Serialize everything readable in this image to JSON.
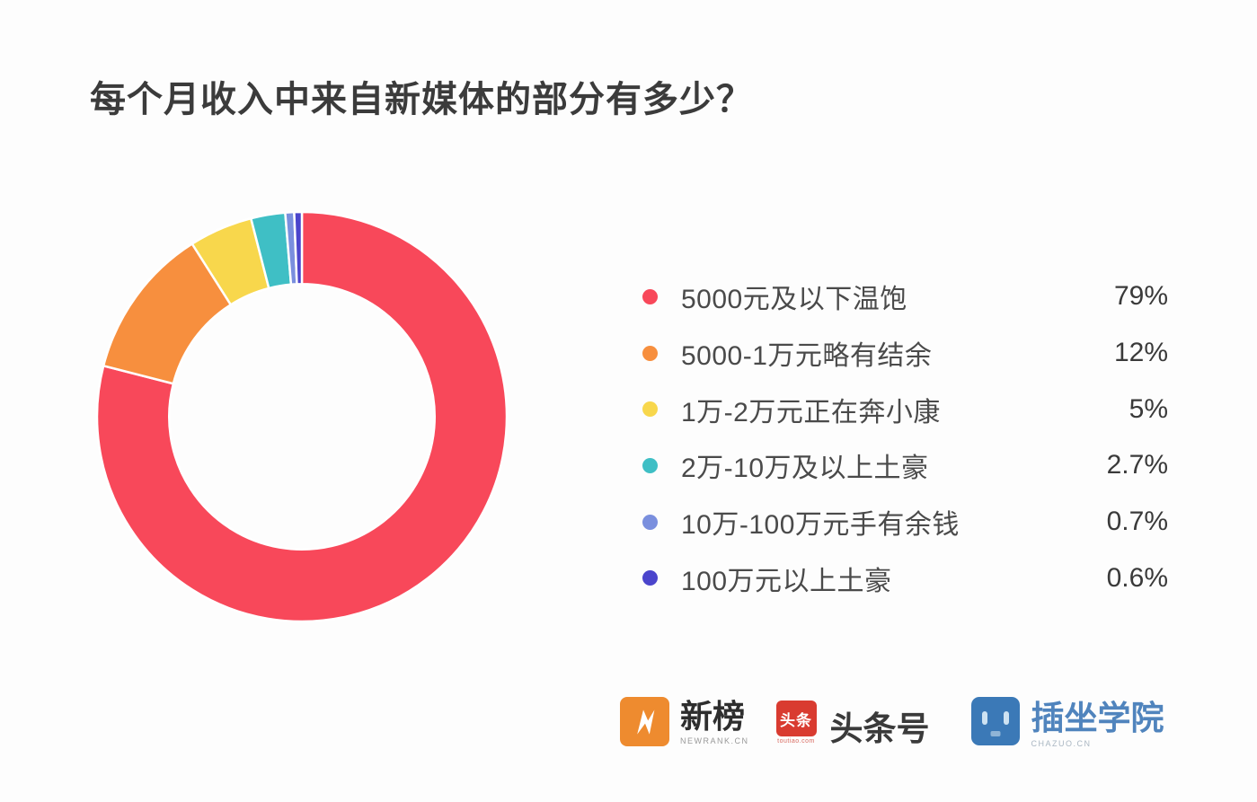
{
  "title": "每个月收入中来自新媒体的部分有多少？",
  "chart_data": {
    "type": "pie",
    "subtype": "donut",
    "title": "每个月收入中来自新媒体的部分有多少？",
    "direction": "clockwise",
    "start_angle_deg": 0,
    "inner_radius_ratio": 0.648,
    "legend_position": "right",
    "series": [
      {
        "label": "5000元及以下温饱",
        "value": 79,
        "display": "79%",
        "color": "#f8485a"
      },
      {
        "label": "5000-1万元略有结余",
        "value": 12,
        "display": "12%",
        "color": "#f78f3e"
      },
      {
        "label": "1万-2万元正在奔小康",
        "value": 5,
        "display": "5%",
        "color": "#f8d74c"
      },
      {
        "label": "2万-10万及以上土豪",
        "value": 2.7,
        "display": "2.7%",
        "color": "#3fbfc5"
      },
      {
        "label": "10万-100万元手有余钱",
        "value": 0.7,
        "display": "0.7%",
        "color": "#7a8fde"
      },
      {
        "label": "100万元以上土豪",
        "value": 0.6,
        "display": "0.6%",
        "color": "#4b45cc"
      }
    ]
  },
  "footer": {
    "logos": [
      {
        "name": "newrank",
        "label": "新榜",
        "sub_label": "NEWRANK.CN",
        "icon": "newrank-n-icon",
        "icon_color": "#ee8b2f"
      },
      {
        "name": "toutiao",
        "label": "头条号",
        "sub_label": "toutiao.com",
        "icon_text": "头条",
        "icon_color": "#d93b30"
      },
      {
        "name": "chazuo",
        "label": "插坐学院",
        "sub_label": "CHAZUO.CN",
        "icon": "chazuo-face-icon",
        "icon_color": "#3b79b7"
      }
    ]
  },
  "colors": {
    "background": "#fdfdfd",
    "title_text": "#3b3b3b",
    "legend_label": "#4a4a4a",
    "legend_value": "#3a3a3a",
    "segment_gap": "#ffffff"
  }
}
